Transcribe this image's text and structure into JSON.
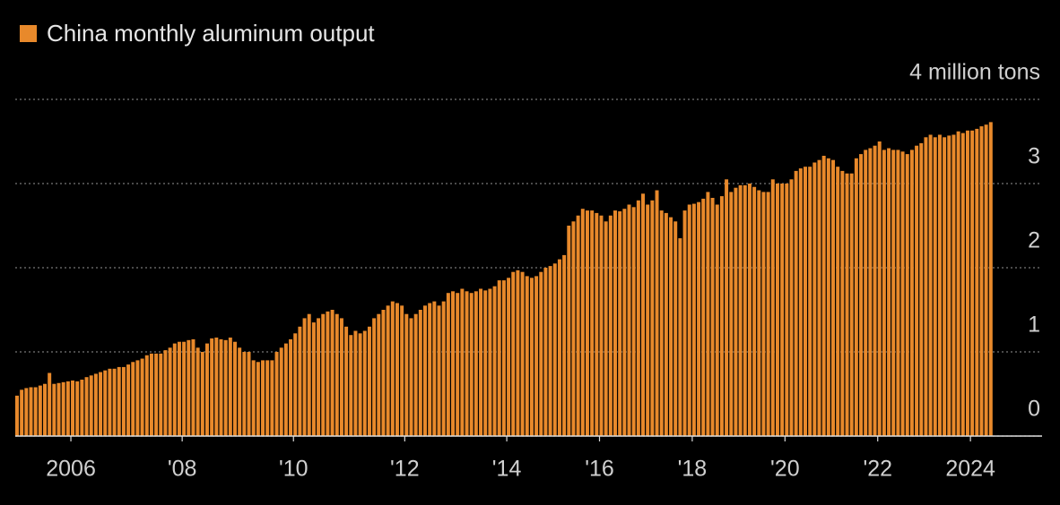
{
  "chart_data": {
    "type": "bar",
    "categories": [
      null,
      null,
      null,
      null,
      null,
      null,
      null,
      null,
      null,
      null,
      null,
      null,
      "2006",
      null,
      null,
      null,
      null,
      null,
      null,
      null,
      null,
      null,
      null,
      null,
      null,
      null,
      null,
      null,
      null,
      null,
      null,
      null,
      null,
      null,
      null,
      null,
      "'08",
      null,
      null,
      null,
      null,
      null,
      null,
      null,
      null,
      null,
      null,
      null,
      null,
      null,
      null,
      null,
      null,
      null,
      null,
      null,
      null,
      null,
      null,
      null,
      "'10",
      null,
      null,
      null,
      null,
      null,
      null,
      null,
      null,
      null,
      null,
      null,
      null,
      null,
      null,
      null,
      null,
      null,
      null,
      null,
      null,
      null,
      null,
      null,
      "'12",
      null,
      null,
      null,
      null,
      null,
      null,
      null,
      null,
      null,
      null,
      null,
      null,
      null,
      null,
      null,
      null,
      null,
      null,
      null,
      null,
      null,
      "'14",
      null,
      null,
      null,
      null,
      null,
      null,
      null,
      null,
      null,
      null,
      null,
      null,
      null,
      null,
      null,
      null,
      null,
      null,
      null,
      "'16",
      null,
      null,
      null,
      null,
      null,
      null,
      null,
      null,
      null,
      null,
      null,
      null,
      null,
      null,
      null,
      null,
      null,
      null,
      null,
      "'18",
      null,
      null,
      null,
      null,
      null,
      null,
      null,
      null,
      null,
      null,
      null,
      null,
      null,
      null,
      null,
      null,
      null,
      null,
      null,
      "'20",
      null,
      null,
      null,
      null,
      null,
      null,
      null,
      null,
      null,
      null,
      null,
      null,
      null,
      null,
      null,
      null,
      null,
      null,
      null,
      "'22",
      null,
      null,
      null,
      null,
      null,
      null,
      null,
      null,
      null,
      null,
      null,
      null,
      null,
      null,
      null,
      null,
      null,
      null,
      null,
      "2024",
      null,
      null,
      null,
      null
    ],
    "series": [
      {
        "name": "China monthly aluminum output",
        "color": "#e8892b",
        "values": [
          0.48,
          0.55,
          0.57,
          0.58,
          0.58,
          0.6,
          0.62,
          0.75,
          0.62,
          0.63,
          0.64,
          0.65,
          0.66,
          0.65,
          0.67,
          0.7,
          0.72,
          0.74,
          0.76,
          0.78,
          0.8,
          0.8,
          0.82,
          0.82,
          0.85,
          0.88,
          0.9,
          0.92,
          0.96,
          0.98,
          0.98,
          0.98,
          1.02,
          1.05,
          1.1,
          1.12,
          1.12,
          1.14,
          1.15,
          1.05,
          1.0,
          1.1,
          1.16,
          1.17,
          1.15,
          1.14,
          1.17,
          1.12,
          1.05,
          1.0,
          1.0,
          0.9,
          0.88,
          0.9,
          0.9,
          0.9,
          1.0,
          1.05,
          1.1,
          1.15,
          1.22,
          1.3,
          1.4,
          1.45,
          1.35,
          1.4,
          1.45,
          1.48,
          1.5,
          1.45,
          1.4,
          1.3,
          1.2,
          1.25,
          1.22,
          1.25,
          1.3,
          1.4,
          1.45,
          1.5,
          1.55,
          1.6,
          1.58,
          1.55,
          1.45,
          1.4,
          1.45,
          1.5,
          1.55,
          1.58,
          1.6,
          1.55,
          1.6,
          1.7,
          1.72,
          1.7,
          1.75,
          1.72,
          1.7,
          1.72,
          1.75,
          1.73,
          1.75,
          1.78,
          1.85,
          1.85,
          1.88,
          1.95,
          1.97,
          1.95,
          1.9,
          1.88,
          1.9,
          1.95,
          2.0,
          2.02,
          2.05,
          2.1,
          2.15,
          2.5,
          2.55,
          2.62,
          2.7,
          2.68,
          2.68,
          2.65,
          2.62,
          2.55,
          2.62,
          2.68,
          2.67,
          2.7,
          2.75,
          2.72,
          2.8,
          2.88,
          2.75,
          2.8,
          2.92,
          2.68,
          2.65,
          2.6,
          2.55,
          2.35,
          2.68,
          2.75,
          2.76,
          2.78,
          2.82,
          2.9,
          2.83,
          2.75,
          2.85,
          3.05,
          2.9,
          2.95,
          2.98,
          2.98,
          3.0,
          2.96,
          2.92,
          2.9,
          2.9,
          3.05,
          3.0,
          3.0,
          3.0,
          3.05,
          3.15,
          3.18,
          3.2,
          3.2,
          3.25,
          3.28,
          3.33,
          3.3,
          3.28,
          3.2,
          3.15,
          3.12,
          3.12,
          3.3,
          3.35,
          3.4,
          3.42,
          3.45,
          3.5,
          3.4,
          3.42,
          3.4,
          3.4,
          3.38,
          3.35,
          3.4,
          3.45,
          3.48,
          3.55,
          3.58,
          3.55,
          3.58,
          3.55,
          3.57,
          3.58,
          3.62,
          3.6,
          3.63,
          3.63,
          3.65,
          3.68,
          3.7,
          3.73
        ]
      }
    ],
    "ylim": [
      0,
      4
    ],
    "yticks": [
      0,
      1,
      2,
      3,
      {
        "value": 4,
        "label": "4 million tons"
      }
    ],
    "grid": true
  }
}
